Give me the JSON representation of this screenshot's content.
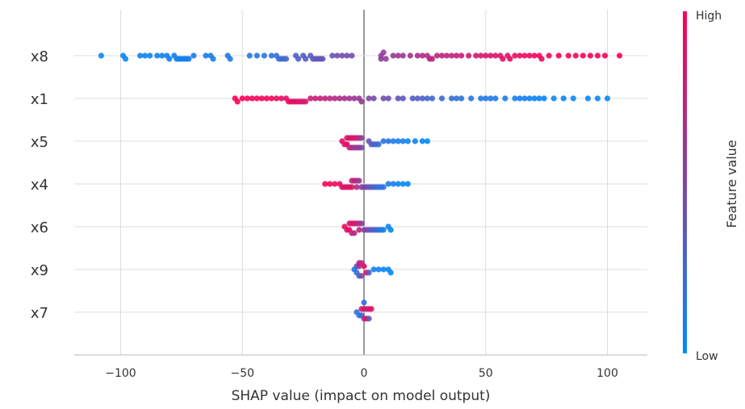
{
  "chart_data": {
    "type": "scatter",
    "subtype": "shap-beeswarm",
    "xlabel": "SHAP value (impact on model output)",
    "xlim": [
      -120,
      117
    ],
    "xticks": [
      -100,
      -50,
      0,
      50,
      100
    ],
    "xtick_labels": [
      "−100",
      "−50",
      "0",
      "50",
      "100"
    ],
    "grid": true,
    "colorbar": {
      "label": "Feature value",
      "high_label": "High",
      "low_label": "Low",
      "low_color": "#008bfb",
      "high_color": "#ff0052",
      "placement": "right"
    },
    "features": [
      {
        "name": "x8",
        "points": [
          [
            -108,
            0.02
          ],
          [
            -99,
            0.03
          ],
          [
            -98,
            0.03
          ],
          [
            -92,
            0.04
          ],
          [
            -90,
            0.05
          ],
          [
            -88,
            0.05
          ],
          [
            -85,
            0.06
          ],
          [
            -83,
            0.06
          ],
          [
            -81,
            0.07
          ],
          [
            -80,
            0.07
          ],
          [
            -78,
            0.07
          ],
          [
            -77,
            0.08
          ],
          [
            -76,
            0.08
          ],
          [
            -75,
            0.08
          ],
          [
            -74,
            0.08
          ],
          [
            -73,
            0.09
          ],
          [
            -72,
            0.09
          ],
          [
            -70,
            0.1
          ],
          [
            -65,
            0.1
          ],
          [
            -63,
            0.11
          ],
          [
            -62,
            0.11
          ],
          [
            -56,
            0.12
          ],
          [
            -55,
            0.12
          ],
          [
            -47,
            0.14
          ],
          [
            -44,
            0.15
          ],
          [
            -41,
            0.16
          ],
          [
            -38,
            0.18
          ],
          [
            -36,
            0.2
          ],
          [
            -35,
            0.22
          ],
          [
            -34,
            0.24
          ],
          [
            -33,
            0.25
          ],
          [
            -32,
            0.26
          ],
          [
            -28,
            0.3
          ],
          [
            -27,
            0.32
          ],
          [
            -25,
            0.34
          ],
          [
            -24,
            0.34
          ],
          [
            -22,
            0.35
          ],
          [
            -21,
            0.36
          ],
          [
            -20,
            0.37
          ],
          [
            -19,
            0.38
          ],
          [
            -18,
            0.39
          ],
          [
            -17,
            0.4
          ],
          [
            -13,
            0.42
          ],
          [
            -11,
            0.43
          ],
          [
            -9,
            0.44
          ],
          [
            -7,
            0.45
          ],
          [
            -5,
            0.46
          ],
          [
            7,
            0.55
          ],
          [
            7,
            0.56
          ],
          [
            8,
            0.57
          ],
          [
            9,
            0.57
          ],
          [
            12,
            0.6
          ],
          [
            14,
            0.6
          ],
          [
            16,
            0.62
          ],
          [
            19,
            0.65
          ],
          [
            22,
            0.68
          ],
          [
            24,
            0.7
          ],
          [
            26,
            0.7
          ],
          [
            27,
            0.72
          ],
          [
            28,
            0.72
          ],
          [
            30,
            0.73
          ],
          [
            32,
            0.74
          ],
          [
            34,
            0.75
          ],
          [
            36,
            0.76
          ],
          [
            38,
            0.77
          ],
          [
            40,
            0.78
          ],
          [
            43,
            0.8
          ],
          [
            46,
            0.82
          ],
          [
            48,
            0.83
          ],
          [
            50,
            0.84
          ],
          [
            52,
            0.85
          ],
          [
            54,
            0.86
          ],
          [
            56,
            0.87
          ],
          [
            57,
            0.88
          ],
          [
            59,
            0.89
          ],
          [
            60,
            0.9
          ],
          [
            62,
            0.9
          ],
          [
            64,
            0.91
          ],
          [
            66,
            0.92
          ],
          [
            68,
            0.93
          ],
          [
            70,
            0.94
          ],
          [
            72,
            0.95
          ],
          [
            73,
            0.95
          ],
          [
            76,
            0.96
          ],
          [
            80,
            0.97
          ],
          [
            84,
            0.97
          ],
          [
            87,
            0.98
          ],
          [
            90,
            0.98
          ],
          [
            93,
            0.99
          ],
          [
            96,
            0.99
          ],
          [
            99,
            1
          ],
          [
            105,
            1
          ]
        ]
      },
      {
        "name": "x1",
        "points": [
          [
            -53,
            1
          ],
          [
            -52,
            0.99
          ],
          [
            -50,
            0.98
          ],
          [
            -48,
            0.98
          ],
          [
            -46,
            0.97
          ],
          [
            -44,
            0.97
          ],
          [
            -42,
            0.96
          ],
          [
            -40,
            0.95
          ],
          [
            -38,
            0.94
          ],
          [
            -36,
            0.93
          ],
          [
            -34,
            0.92
          ],
          [
            -32,
            0.9
          ],
          [
            -31,
            0.9
          ],
          [
            -30,
            0.89
          ],
          [
            -29,
            0.88
          ],
          [
            -28,
            0.87
          ],
          [
            -27,
            0.86
          ],
          [
            -26,
            0.85
          ],
          [
            -25,
            0.84
          ],
          [
            -24,
            0.83
          ],
          [
            -22,
            0.8
          ],
          [
            -20,
            0.78
          ],
          [
            -18,
            0.76
          ],
          [
            -16,
            0.74
          ],
          [
            -14,
            0.72
          ],
          [
            -12,
            0.7
          ],
          [
            -10,
            0.68
          ],
          [
            -8,
            0.66
          ],
          [
            -6,
            0.64
          ],
          [
            -4,
            0.62
          ],
          [
            -2,
            0.6
          ],
          [
            -1,
            0.58
          ],
          [
            2,
            0.5
          ],
          [
            4,
            0.48
          ],
          [
            8,
            0.45
          ],
          [
            10,
            0.42
          ],
          [
            14,
            0.4
          ],
          [
            16,
            0.38
          ],
          [
            20,
            0.35
          ],
          [
            22,
            0.33
          ],
          [
            24,
            0.3
          ],
          [
            26,
            0.28
          ],
          [
            28,
            0.26
          ],
          [
            32,
            0.24
          ],
          [
            36,
            0.22
          ],
          [
            38,
            0.2
          ],
          [
            40,
            0.18
          ],
          [
            44,
            0.16
          ],
          [
            48,
            0.14
          ],
          [
            50,
            0.13
          ],
          [
            52,
            0.12
          ],
          [
            54,
            0.11
          ],
          [
            58,
            0.1
          ],
          [
            62,
            0.09
          ],
          [
            64,
            0.08
          ],
          [
            66,
            0.08
          ],
          [
            68,
            0.07
          ],
          [
            70,
            0.06
          ],
          [
            72,
            0.06
          ],
          [
            74,
            0.05
          ],
          [
            78,
            0.05
          ],
          [
            82,
            0.04
          ],
          [
            86,
            0.03
          ],
          [
            92,
            0.03
          ],
          [
            96,
            0.02
          ],
          [
            100,
            0.01
          ]
        ]
      },
      {
        "name": "x5",
        "points": [
          [
            -9,
            0.9
          ],
          [
            -8,
            0.85
          ],
          [
            -7,
            0.95
          ],
          [
            -7,
            0.8
          ],
          [
            -6,
            0.9
          ],
          [
            -6,
            0.7
          ],
          [
            -5,
            0.85
          ],
          [
            -5,
            0.75
          ],
          [
            -4,
            0.9
          ],
          [
            -4,
            0.6
          ],
          [
            -3,
            0.8
          ],
          [
            -3,
            0.65
          ],
          [
            -2,
            0.7
          ],
          [
            -2,
            0.55
          ],
          [
            -1,
            0.6
          ],
          [
            -1,
            0.5
          ],
          [
            2,
            0.4
          ],
          [
            3,
            0.35
          ],
          [
            4,
            0.3
          ],
          [
            5,
            0.25
          ],
          [
            6,
            0.2
          ],
          [
            8,
            0.15
          ],
          [
            10,
            0.15
          ],
          [
            12,
            0.1
          ],
          [
            14,
            0.1
          ],
          [
            16,
            0.08
          ],
          [
            18,
            0.06
          ],
          [
            21,
            0.05
          ],
          [
            24,
            0.03
          ],
          [
            26,
            0.02
          ]
        ]
      },
      {
        "name": "x4",
        "points": [
          [
            -16,
            1
          ],
          [
            -14,
            0.95
          ],
          [
            -12,
            0.9
          ],
          [
            -10,
            0.95
          ],
          [
            -9,
            0.85
          ],
          [
            -8,
            0.9
          ],
          [
            -7,
            0.8
          ],
          [
            -6,
            0.9
          ],
          [
            -5,
            0.85
          ],
          [
            -5,
            0.75
          ],
          [
            -4,
            0.8
          ],
          [
            -3,
            0.7
          ],
          [
            -3,
            0.65
          ],
          [
            -2,
            0.6
          ],
          [
            -1,
            0.55
          ],
          [
            0,
            0.5
          ],
          [
            1,
            0.45
          ],
          [
            2,
            0.4
          ],
          [
            3,
            0.35
          ],
          [
            4,
            0.3
          ],
          [
            5,
            0.25
          ],
          [
            6,
            0.2
          ],
          [
            7,
            0.18
          ],
          [
            8,
            0.15
          ],
          [
            10,
            0.1
          ],
          [
            12,
            0.08
          ],
          [
            14,
            0.05
          ],
          [
            16,
            0.03
          ],
          [
            18,
            0.02
          ]
        ]
      },
      {
        "name": "x6",
        "points": [
          [
            -8,
            0.9
          ],
          [
            -7,
            0.85
          ],
          [
            -6,
            0.95
          ],
          [
            -6,
            0.8
          ],
          [
            -5,
            0.9
          ],
          [
            -5,
            0.75
          ],
          [
            -4,
            0.85
          ],
          [
            -4,
            0.7
          ],
          [
            -3,
            0.8
          ],
          [
            -2,
            0.75
          ],
          [
            -2,
            0.65
          ],
          [
            -1,
            0.6
          ],
          [
            0,
            0.55
          ],
          [
            1,
            0.5
          ],
          [
            2,
            0.4
          ],
          [
            3,
            0.35
          ],
          [
            4,
            0.3
          ],
          [
            5,
            0.25
          ],
          [
            6,
            0.2
          ],
          [
            7,
            0.15
          ],
          [
            8,
            0.1
          ],
          [
            10,
            0.05
          ],
          [
            11,
            0.03
          ]
        ]
      },
      {
        "name": "x9",
        "points": [
          [
            -4,
            0.1
          ],
          [
            -3,
            0.2
          ],
          [
            -3,
            0.4
          ],
          [
            -2,
            0.6
          ],
          [
            -2,
            0.3
          ],
          [
            -2,
            0.8
          ],
          [
            -1,
            0.5
          ],
          [
            -1,
            0.7
          ],
          [
            0,
            0.9
          ],
          [
            1,
            0.95
          ],
          [
            2,
            0.3
          ],
          [
            4,
            0.1
          ],
          [
            6,
            0.05
          ],
          [
            8,
            0.05
          ],
          [
            10,
            0.03
          ],
          [
            11,
            0.02
          ]
        ]
      },
      {
        "name": "x7",
        "points": [
          [
            -3,
            0.2
          ],
          [
            -2,
            0.1
          ],
          [
            -1,
            0.3
          ],
          [
            -1,
            0.8
          ],
          [
            0,
            0.9
          ],
          [
            0,
            0.6
          ],
          [
            1,
            0.7
          ],
          [
            1,
            0.95
          ],
          [
            2,
            0.85
          ],
          [
            2,
            0.4
          ],
          [
            3,
            0.9
          ],
          [
            0,
            0.2
          ]
        ]
      }
    ]
  }
}
